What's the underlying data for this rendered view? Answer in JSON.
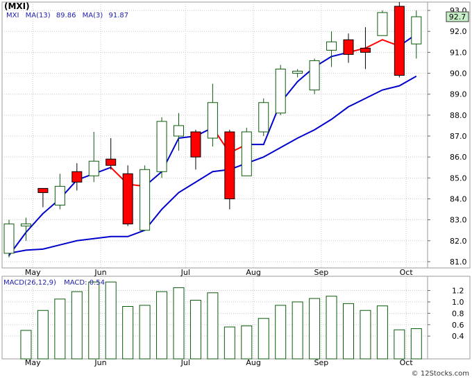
{
  "title": "(MXI)",
  "credit": "© 12Stocks.com",
  "colors": {
    "up_candle": "#0a5a0a",
    "down_candle": "#ff0000",
    "ma_line": "#0000cc",
    "ma_down": "#ff0000",
    "legend_text": "#2020aa",
    "grid": "#c8c8c8",
    "price_box": "#c8f0c8"
  },
  "chart_data": [
    {
      "type": "candlestick",
      "symbol": "MXI",
      "legend": [
        {
          "label": "MXI",
          "value": ""
        },
        {
          "label": "MA(13)",
          "value": "89.86"
        },
        {
          "label": "MA(3)",
          "value": "91.87"
        }
      ],
      "ylim": [
        80.7,
        93.4
      ],
      "yticks": [
        "81.0",
        "82.0",
        "83.0",
        "84.0",
        "85.0",
        "86.0",
        "87.0",
        "88.0",
        "89.0",
        "90.0",
        "91.0",
        "92.0",
        "93.0"
      ],
      "last_price_label": "92.7",
      "last_price": 92.7,
      "xticks": [
        {
          "label": "May",
          "index": 1.4
        },
        {
          "label": "Jun",
          "index": 5.4
        },
        {
          "label": "Jul",
          "index": 10.4
        },
        {
          "label": "Aug",
          "index": 14.4
        },
        {
          "label": "Sep",
          "index": 18.4
        },
        {
          "label": "Oct",
          "index": 23.4
        }
      ],
      "candles": [
        {
          "o": 81.4,
          "h": 83.0,
          "l": 81.2,
          "c": 82.8
        },
        {
          "o": 82.7,
          "h": 83.1,
          "l": 82.0,
          "c": 82.8
        },
        {
          "o": 84.5,
          "h": 84.5,
          "l": 83.6,
          "c": 84.3
        },
        {
          "o": 83.7,
          "h": 85.2,
          "l": 83.5,
          "c": 84.6
        },
        {
          "o": 85.3,
          "h": 85.7,
          "l": 84.4,
          "c": 84.8
        },
        {
          "o": 85.1,
          "h": 87.2,
          "l": 84.8,
          "c": 85.8
        },
        {
          "o": 85.9,
          "h": 86.9,
          "l": 85.4,
          "c": 85.6
        },
        {
          "o": 85.2,
          "h": 85.6,
          "l": 82.7,
          "c": 82.8
        },
        {
          "o": 82.5,
          "h": 85.6,
          "l": 82.5,
          "c": 85.4
        },
        {
          "o": 85.3,
          "h": 87.9,
          "l": 85.0,
          "c": 87.7
        },
        {
          "o": 87.0,
          "h": 88.1,
          "l": 86.3,
          "c": 87.5
        },
        {
          "o": 87.2,
          "h": 87.3,
          "l": 85.4,
          "c": 86.0
        },
        {
          "o": 86.9,
          "h": 89.5,
          "l": 86.5,
          "c": 88.6
        },
        {
          "o": 87.2,
          "h": 87.3,
          "l": 83.5,
          "c": 84.0
        },
        {
          "o": 85.1,
          "h": 87.4,
          "l": 85.1,
          "c": 87.2
        },
        {
          "o": 87.2,
          "h": 88.8,
          "l": 87.0,
          "c": 88.6
        },
        {
          "o": 88.1,
          "h": 90.4,
          "l": 88.0,
          "c": 90.2
        },
        {
          "o": 90.0,
          "h": 90.2,
          "l": 89.8,
          "c": 90.1
        },
        {
          "o": 89.2,
          "h": 90.7,
          "l": 89.0,
          "c": 90.6
        },
        {
          "o": 91.1,
          "h": 92.0,
          "l": 90.3,
          "c": 91.5
        },
        {
          "o": 91.6,
          "h": 91.9,
          "l": 90.5,
          "c": 90.9
        },
        {
          "o": 91.2,
          "h": 92.2,
          "l": 90.2,
          "c": 91.0
        },
        {
          "o": 91.8,
          "h": 93.0,
          "l": 91.8,
          "c": 92.9
        },
        {
          "o": 93.2,
          "h": 93.4,
          "l": 89.8,
          "c": 89.9
        },
        {
          "o": 91.4,
          "h": 93.0,
          "l": 90.7,
          "c": 92.7
        }
      ],
      "ma_long": [
        81.4,
        81.55,
        81.6,
        81.8,
        82.0,
        82.1,
        82.2,
        82.2,
        82.5,
        83.5,
        84.3,
        84.8,
        85.3,
        85.4,
        85.7,
        86.0,
        86.45,
        86.9,
        87.3,
        87.8,
        88.4,
        88.8,
        89.2,
        89.4,
        89.86
      ],
      "ma_short": [
        81.3,
        82.4,
        83.3,
        84.0,
        84.9,
        85.2,
        85.5,
        84.7,
        84.6,
        85.3,
        86.9,
        87.0,
        87.4,
        86.2,
        86.6,
        86.6,
        88.6,
        89.6,
        90.3,
        90.8,
        91.0,
        91.2,
        91.6,
        91.3,
        91.87
      ],
      "ma_short_down_segments": [
        6,
        7,
        12,
        13,
        20,
        21,
        22
      ]
    },
    {
      "type": "bar",
      "legend": [
        {
          "label": "MACD(26,12,9)",
          "value": ""
        },
        {
          "label": "MACD:",
          "value": "0.54"
        }
      ],
      "ylim": [
        0.0,
        1.45
      ],
      "yticks": [
        "0.4",
        "0.6",
        "0.8",
        "1.0",
        "1.2"
      ],
      "values": [
        0.5,
        0.85,
        1.05,
        1.18,
        1.35,
        1.35,
        0.92,
        0.94,
        1.18,
        1.25,
        1.03,
        1.16,
        0.56,
        0.58,
        0.71,
        0.94,
        1.0,
        1.06,
        1.1,
        0.97,
        0.85,
        0.93,
        0.51,
        0.53
      ]
    }
  ]
}
